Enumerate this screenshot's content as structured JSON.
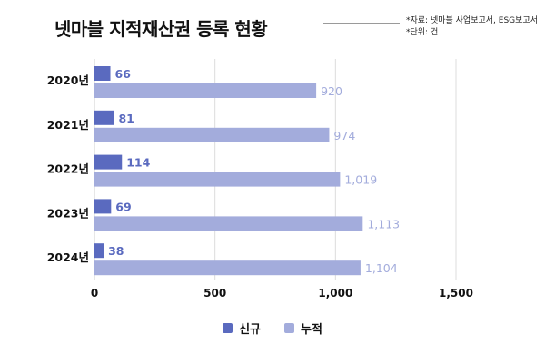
{
  "title": "넷마블 지적재산권 등록 현황",
  "notes": [
    "*자료: 넷마블 사업보고서, ESG보고서",
    "*단위: 건"
  ],
  "colors": {
    "new": "#5a6abf",
    "cumulative": "#a3acdc",
    "grid": "#dcdcdc"
  },
  "chart_data": {
    "type": "bar",
    "orientation": "horizontal",
    "categories": [
      "2020년",
      "2021년",
      "2022년",
      "2023년",
      "2024년"
    ],
    "series": [
      {
        "name": "신규",
        "values": [
          66,
          81,
          114,
          69,
          38
        ],
        "labels": [
          "66",
          "81",
          "114",
          "69",
          "38"
        ]
      },
      {
        "name": "누적",
        "values": [
          920,
          974,
          1019,
          1113,
          1104
        ],
        "labels": [
          "920",
          "974",
          "1,019",
          "1,113",
          "1,104"
        ]
      }
    ],
    "xlim": [
      0,
      1500
    ],
    "xticks": [
      0,
      500,
      1000,
      1500
    ],
    "xtick_labels": [
      "0",
      "500",
      "1,000",
      "1,500"
    ],
    "grid": true,
    "legend_position": "bottom-center"
  }
}
